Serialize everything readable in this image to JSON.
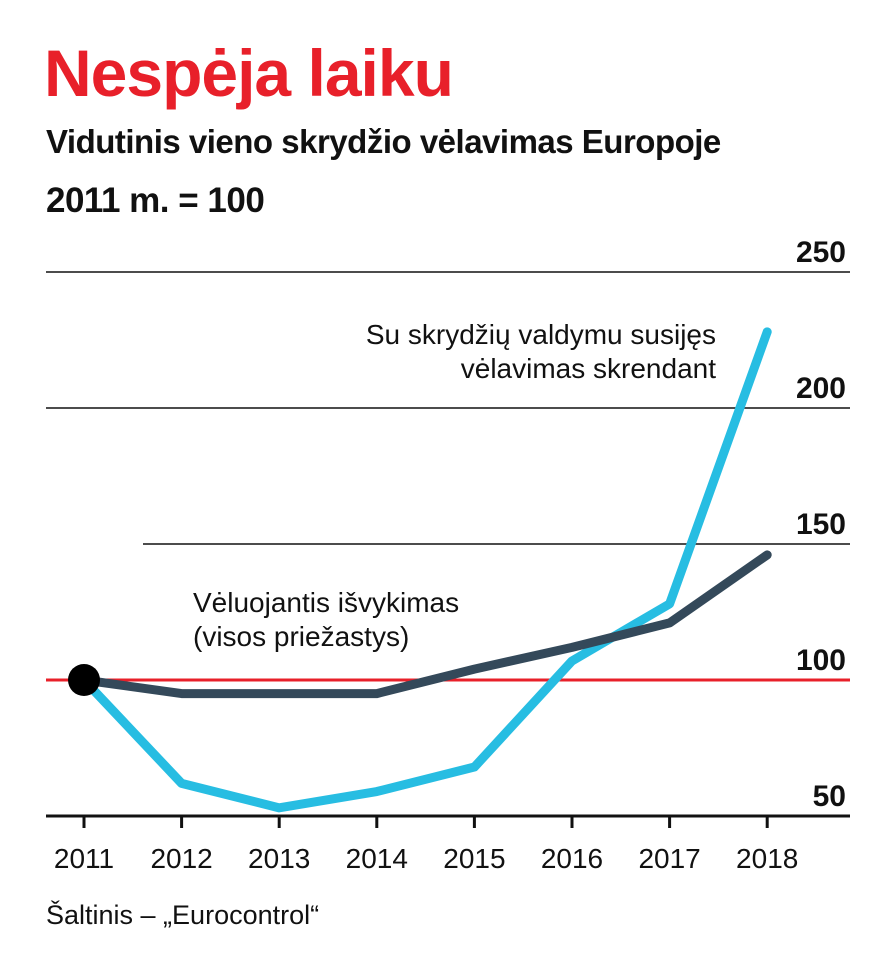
{
  "header": {
    "title": "Nespėja laiku",
    "subtitle": "Vidutinis vieno skrydžio vėlavimas Europoje",
    "index_note": "2011 m. = 100"
  },
  "source": "Šaltinis – „Eurocontrol“",
  "colors": {
    "title": "#e8202a",
    "reference_line": "#e8202a",
    "series_departure": "#34495a",
    "series_airborne": "#27bde2",
    "gridline": "#111111"
  },
  "chart_data": {
    "type": "line",
    "x": [
      "2011",
      "2012",
      "2013",
      "2014",
      "2015",
      "2016",
      "2017",
      "2018"
    ],
    "ylim": [
      50,
      250
    ],
    "yticks": [
      50,
      100,
      150,
      200,
      250
    ],
    "reference_value": 100,
    "grid": true,
    "series": [
      {
        "name": "Su skrydžių valdymu susijęs vėlavimas skrendant",
        "label_lines": [
          "Su skrydžių valdymu susijęs",
          "vėlavimas skrendant"
        ],
        "values": [
          100,
          62,
          53,
          59,
          68,
          107,
          128,
          228
        ]
      },
      {
        "name": "Vėluojantis išvykimas (visos priežastys)",
        "label_lines": [
          "Vėluojantis išvykimas",
          "(visos priežastys)"
        ],
        "values": [
          100,
          95,
          95,
          95,
          104,
          112,
          121,
          146
        ]
      }
    ]
  }
}
